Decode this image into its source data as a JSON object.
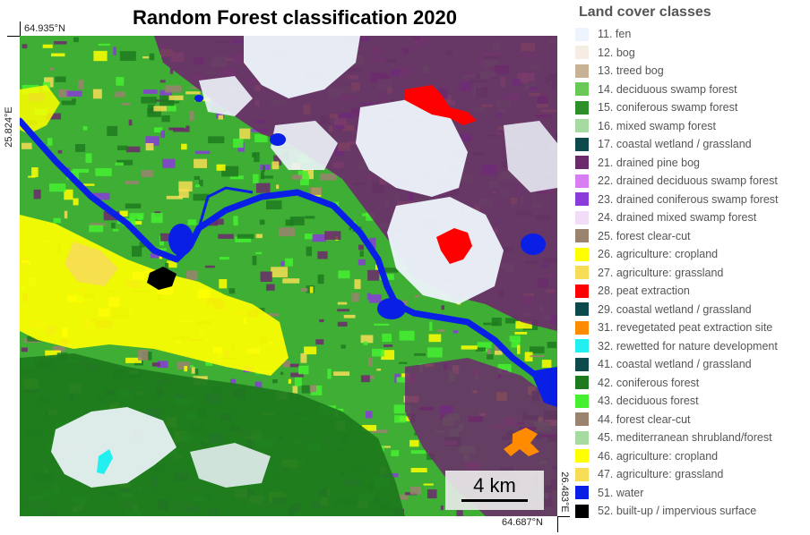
{
  "title": "Random Forest classification 2020",
  "coords": {
    "top_left": "64.935°N",
    "left": "25.824°E",
    "bottom_right": "64.687°N",
    "right": "26.483°E"
  },
  "scale_bar": {
    "label": "4 km"
  },
  "legend": {
    "title": "Land cover classes",
    "items": [
      {
        "label": "11. fen",
        "color": "#eef4fb"
      },
      {
        "label": "12. bog",
        "color": "#f5ede3"
      },
      {
        "label": "13. treed bog",
        "color": "#c8b295"
      },
      {
        "label": "14. deciduous swamp forest",
        "color": "#69c957"
      },
      {
        "label": "15. coniferous swamp forest",
        "color": "#2e8f2a"
      },
      {
        "label": "16. mixed swamp forest",
        "color": "#a5dba0"
      },
      {
        "label": "17. coastal wetland / grassland",
        "color": "#0d4a4e"
      },
      {
        "label": "21. drained pine bog",
        "color": "#6b2a6b"
      },
      {
        "label": "22. drained deciduous swamp forest",
        "color": "#d77ff2"
      },
      {
        "label": "23. drained coniferous swamp forest",
        "color": "#8a3bd9"
      },
      {
        "label": "24. drained mixed swamp forest",
        "color": "#f2dcf7"
      },
      {
        "label": "25. forest clear-cut",
        "color": "#9a846f"
      },
      {
        "label": "26. agriculture: cropland",
        "color": "#ffff00"
      },
      {
        "label": "27. agriculture: grassland",
        "color": "#f7dd55"
      },
      {
        "label": "28. peat extraction",
        "color": "#ff0000"
      },
      {
        "label": "29. coastal wetland / grassland",
        "color": "#0d4a4e"
      },
      {
        "label": "31. revegetated peat extraction site",
        "color": "#ff8c00"
      },
      {
        "label": "32. rewetted for nature development",
        "color": "#22f0f0"
      },
      {
        "label": "41. coastal wetland / grassland",
        "color": "#0d4a4e"
      },
      {
        "label": "42. coniferous forest",
        "color": "#1e7a1e"
      },
      {
        "label": "43. deciduous forest",
        "color": "#45f030"
      },
      {
        "label": "44. forest clear-cut",
        "color": "#9a846f"
      },
      {
        "label": "45. mediterranean shrubland/forest",
        "color": "#a5dba0"
      },
      {
        "label": "46. agriculture: cropland",
        "color": "#ffff00"
      },
      {
        "label": "47. agriculture: grassland",
        "color": "#f7dd55"
      },
      {
        "label": "51. water",
        "color": "#0a1fe6"
      },
      {
        "label": "52. built-up / impervious surface",
        "color": "#000000"
      }
    ]
  },
  "map_colors": {
    "base": "#3fae35",
    "deciduous": "#45f030",
    "coniferous": "#1e7a1e",
    "drained_pine_bog": "#6b2a6b",
    "fen": "#eef4fb",
    "clear_cut": "#9a846f",
    "cropland": "#ffff00",
    "grassland": "#f7dd55",
    "peat_extraction": "#ff0000",
    "revegetated": "#ff8c00",
    "rewetted": "#22f0f0",
    "water": "#0a1fe6",
    "built_up": "#000000",
    "drained_coniferous": "#8a3bd9"
  }
}
